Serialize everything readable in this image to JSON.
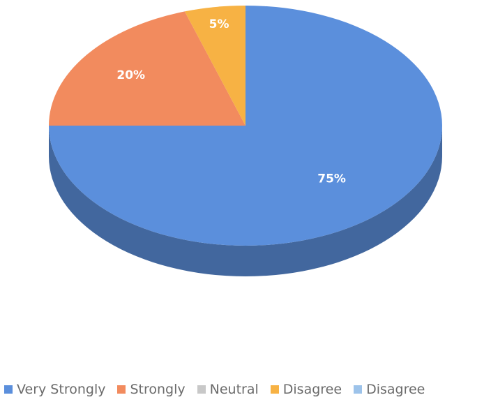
{
  "chart_data": {
    "type": "pie",
    "categories": [
      "Very Strongly",
      "Strongly",
      "Neutral",
      "Disagree",
      "Disagree"
    ],
    "values": [
      75,
      20,
      0,
      5,
      0
    ],
    "data_labels": [
      "75%",
      "20%",
      "",
      "5%",
      ""
    ],
    "colors": [
      "#5b8fdc",
      "#f28b5e",
      "#c8c8c8",
      "#f7b244",
      "#9dc3ea"
    ],
    "legend_position": "bottom",
    "style": "3d"
  }
}
